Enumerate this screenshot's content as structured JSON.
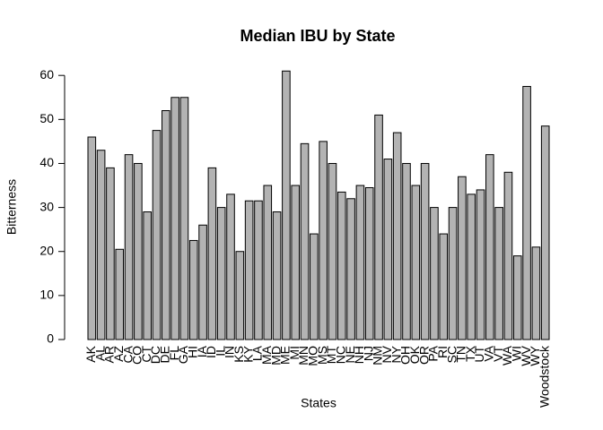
{
  "chart_data": {
    "type": "bar",
    "title": "Median IBU by State",
    "x_label": "States",
    "y_label": "Bitterness",
    "categories": [
      "AK",
      "AL",
      "AR",
      "AZ",
      "CA",
      "CO",
      "CT",
      "DC",
      "DE",
      "FL",
      "GA",
      "HI",
      "IA",
      "ID",
      "IL",
      "IN",
      "KS",
      "KY",
      "LA",
      "MA",
      "MD",
      "ME",
      "MI",
      "MN",
      "MO",
      "MS",
      "MT",
      "NC",
      "NE",
      "NH",
      "NJ",
      "NM",
      "NV",
      "NY",
      "OH",
      "OK",
      "OR",
      "PA",
      "RI",
      "SC",
      "TN",
      "TX",
      "UT",
      "VA",
      "VT",
      "WA",
      "WI",
      "WV",
      "WY",
      "Woodstock"
    ],
    "values": [
      46,
      43,
      39,
      20.5,
      42,
      40,
      29,
      47.5,
      52,
      55,
      55,
      22.5,
      26,
      39,
      30,
      33,
      20,
      31.5,
      31.5,
      35,
      29,
      61,
      35,
      44.5,
      24,
      45,
      40,
      33.5,
      32,
      35,
      34.5,
      51,
      41,
      47,
      40,
      35,
      40,
      30,
      24,
      30,
      37,
      33,
      34,
      42,
      30,
      38,
      19,
      57.5,
      21,
      48.5
    ],
    "color": "#b3b3b3",
    "ylim": [
      0,
      63.5
    ],
    "yticks": [
      0,
      10,
      20,
      30,
      40,
      50,
      60
    ]
  }
}
